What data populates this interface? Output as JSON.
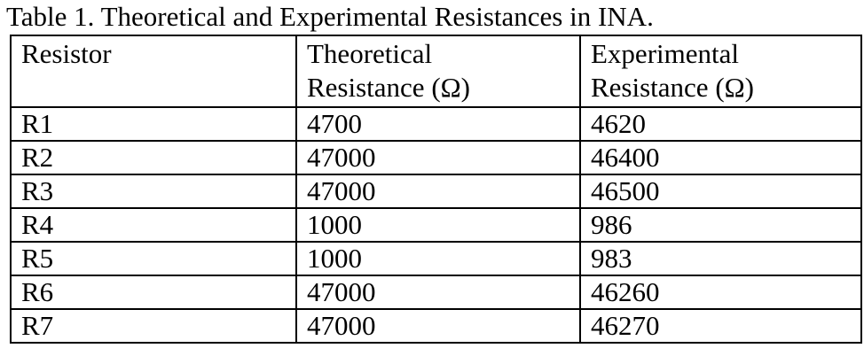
{
  "caption": "Table 1. Theoretical and Experimental Resistances in INA.",
  "table": {
    "headers": [
      {
        "line1": "Resistor",
        "line2": ""
      },
      {
        "line1": "Theoretical",
        "line2": "Resistance (Ω)"
      },
      {
        "line1": "Experimental",
        "line2": "Resistance (Ω)"
      }
    ],
    "rows": [
      {
        "resistor": "R1",
        "theoretical": "4700",
        "experimental": "4620"
      },
      {
        "resistor": "R2",
        "theoretical": "47000",
        "experimental": "46400"
      },
      {
        "resistor": "R3",
        "theoretical": "47000",
        "experimental": "46500"
      },
      {
        "resistor": "R4",
        "theoretical": "1000",
        "experimental": "986"
      },
      {
        "resistor": "R5",
        "theoretical": "1000",
        "experimental": "983"
      },
      {
        "resistor": "R6",
        "theoretical": "47000",
        "experimental": "46260"
      },
      {
        "resistor": "R7",
        "theoretical": "47000",
        "experimental": "46270"
      }
    ]
  }
}
